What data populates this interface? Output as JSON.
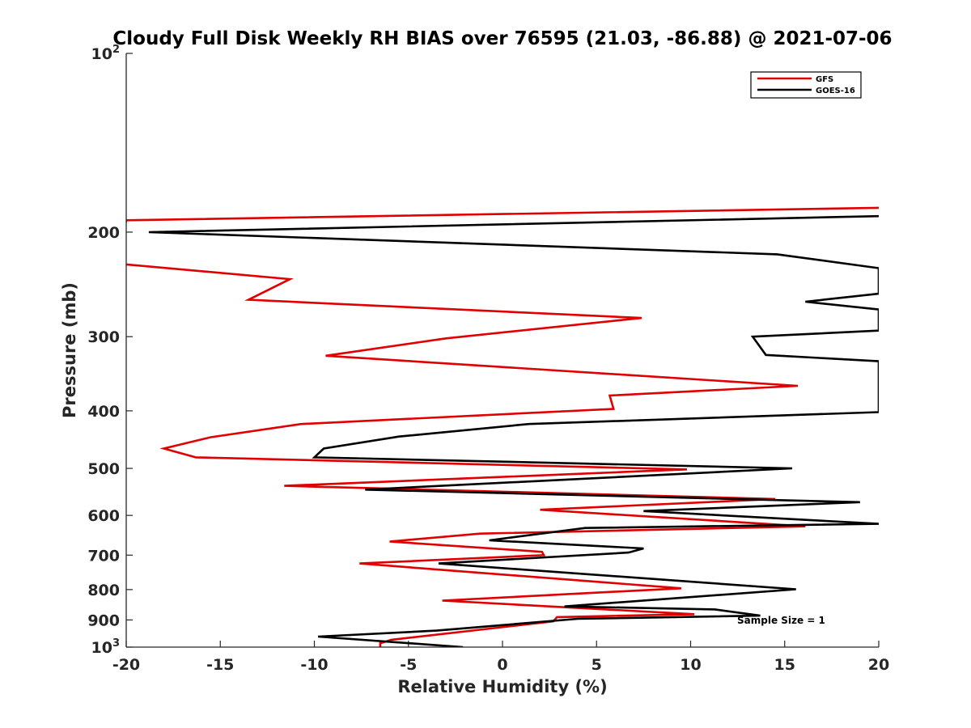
{
  "chart_data": {
    "type": "line",
    "title": "Cloudy Full Disk Weekly RH BIAS over 76595 (21.03, -86.88) @ 2021-07-06",
    "xlabel": "Relative Humidity (%)",
    "ylabel": "Pressure (mb)",
    "xlim": [
      -20,
      20
    ],
    "ylim": [
      100,
      1000
    ],
    "yscale": "log",
    "yreversed": true,
    "x_ticks": [
      "-20",
      "-15",
      "-10",
      "-5",
      "0",
      "5",
      "10",
      "15",
      "20"
    ],
    "y_ticks": [
      {
        "value": 100,
        "label": "10",
        "sup": "2"
      },
      {
        "value": 200,
        "label": "200",
        "sup": ""
      },
      {
        "value": 300,
        "label": "300",
        "sup": ""
      },
      {
        "value": 400,
        "label": "400",
        "sup": ""
      },
      {
        "value": 500,
        "label": "500",
        "sup": ""
      },
      {
        "value": 600,
        "label": "600",
        "sup": ""
      },
      {
        "value": 700,
        "label": "700",
        "sup": ""
      },
      {
        "value": 800,
        "label": "800",
        "sup": ""
      },
      {
        "value": 900,
        "label": "900",
        "sup": ""
      },
      {
        "value": 1000,
        "label": "10",
        "sup": "3"
      }
    ],
    "legend_position": "top-right",
    "annotation": "Sample Size = 1",
    "series": [
      {
        "name": "GFS",
        "color": "#e00000",
        "points": [
          [
            20,
            182
          ],
          [
            -20,
            191
          ],
          [
            -20.5,
            226
          ],
          [
            -11.3,
            240
          ],
          [
            -13.5,
            260
          ],
          [
            7.4,
            279
          ],
          [
            -3,
            302
          ],
          [
            -9.4,
            323
          ],
          [
            15.7,
            363
          ],
          [
            5.7,
            377
          ],
          [
            5.9,
            397
          ],
          [
            -10.7,
            421
          ],
          [
            -15.5,
            443
          ],
          [
            -18,
            463
          ],
          [
            -16.3,
            479
          ],
          [
            9.8,
            502
          ],
          [
            -11.6,
            535
          ],
          [
            14.5,
            563
          ],
          [
            2,
            587
          ],
          [
            16.1,
            626
          ],
          [
            -1.2,
            644
          ],
          [
            -6,
            664
          ],
          [
            2.1,
            691
          ],
          [
            2.2,
            700
          ],
          [
            -7.6,
            723
          ],
          [
            9.5,
            796
          ],
          [
            -3.2,
            835
          ],
          [
            10.2,
            880
          ],
          [
            2.9,
            890
          ],
          [
            2.7,
            905
          ],
          [
            -5.9,
            972
          ],
          [
            -6.5,
            985
          ],
          [
            -6.5,
            1000
          ]
        ]
      },
      {
        "name": "GOES-16",
        "color": "#000000",
        "points": [
          [
            20,
            188
          ],
          [
            -18.8,
            200
          ],
          [
            14.6,
            218
          ],
          [
            20,
            230
          ],
          [
            20,
            254
          ],
          [
            16.1,
            262
          ],
          [
            20,
            270
          ],
          [
            20,
            293
          ],
          [
            13.3,
            300
          ],
          [
            14,
            322
          ],
          [
            20,
            330
          ],
          [
            20,
            402
          ],
          [
            1.4,
            421
          ],
          [
            -5.5,
            442
          ],
          [
            -9.5,
            463
          ],
          [
            -10,
            479
          ],
          [
            15.4,
            500
          ],
          [
            -7.3,
            543
          ],
          [
            19,
            570
          ],
          [
            7.5,
            590
          ],
          [
            20,
            620
          ],
          [
            4.4,
            630
          ],
          [
            -0.7,
            661
          ],
          [
            7.5,
            682
          ],
          [
            6.7,
            693
          ],
          [
            -3.4,
            723
          ],
          [
            15.6,
            799
          ],
          [
            3.3,
            854
          ],
          [
            11.3,
            864
          ],
          [
            13.7,
            885
          ],
          [
            4,
            896
          ],
          [
            -3.5,
            938
          ],
          [
            -9.8,
            960
          ],
          [
            -2.1,
            1000
          ]
        ]
      }
    ]
  }
}
